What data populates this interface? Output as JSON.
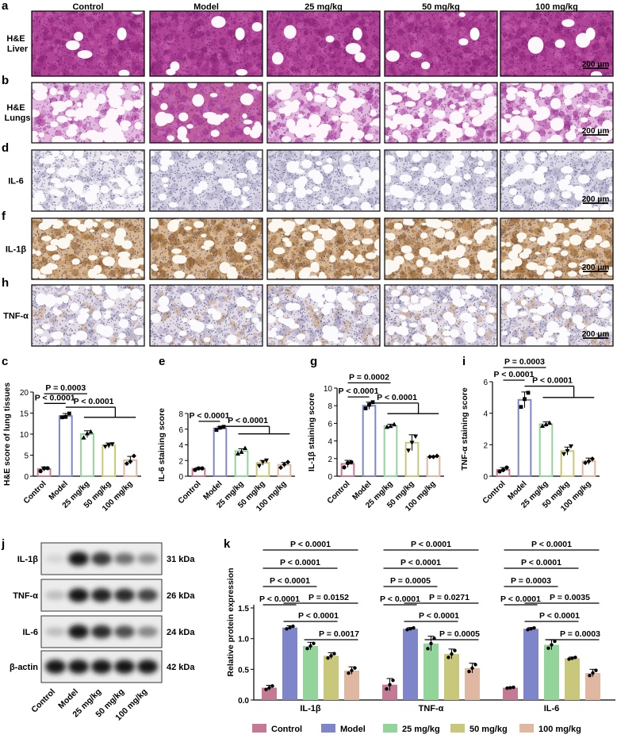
{
  "histology": {
    "columns": [
      "Control",
      "Model",
      "25 mg/kg",
      "50 mg/kg",
      "100 mg/kg"
    ],
    "rows": [
      {
        "letter": "a",
        "label": [
          "H&E",
          "Liver"
        ],
        "stain": "he-liver",
        "scale": "200 μm"
      },
      {
        "letter": "b",
        "label": [
          "H&E",
          "Lungs"
        ],
        "stain": "he-lung",
        "scale": "200 μm"
      },
      {
        "letter": "d",
        "label": [
          "IL-6"
        ],
        "stain": "ihc-light",
        "scale": "200 μm"
      },
      {
        "letter": "f",
        "label": [
          "IL-1β"
        ],
        "stain": "ihc-strong",
        "scale": "200 μm"
      },
      {
        "letter": "h",
        "label": [
          "TNF-α"
        ],
        "stain": "ihc-medium",
        "scale": "200 μm"
      }
    ]
  },
  "bar_colors": [
    "#c47a95",
    "#7e85c9",
    "#93d49b",
    "#c9c77a",
    "#e0b7a1"
  ],
  "groups": [
    "Control",
    "Model",
    "25 mg/kg",
    "50 mg/kg",
    "100 mg/kg"
  ],
  "blot": {
    "letter": "j",
    "rows": [
      {
        "label": "IL-1β",
        "kda": "31 kDa",
        "intensity": [
          0.1,
          0.95,
          0.8,
          0.55,
          0.4
        ]
      },
      {
        "label": "TNF-α",
        "kda": "26 kDa",
        "intensity": [
          0.2,
          0.95,
          0.9,
          0.85,
          0.75
        ]
      },
      {
        "label": "IL-6",
        "kda": "24 kDa",
        "intensity": [
          0.2,
          0.95,
          0.85,
          0.7,
          0.45
        ]
      },
      {
        "label": "β-actin",
        "kda": "42 kDa",
        "intensity": [
          0.95,
          0.95,
          0.95,
          0.95,
          0.95
        ]
      }
    ],
    "lanes": [
      "Control",
      "Model",
      "25 mg/kg",
      "50 mg/kg",
      "100 mg/kg"
    ]
  },
  "chart_data": [
    {
      "id": "c",
      "type": "bar",
      "categories": [
        "Control",
        "Model",
        "25 mg/kg",
        "50 mg/kg",
        "100 mg/kg"
      ],
      "values": [
        1.7,
        14.3,
        10.0,
        7.3,
        3.8
      ],
      "errors": [
        0.5,
        0.6,
        0.8,
        0.6,
        0.9
      ],
      "points": [
        [
          1.2,
          1.9,
          1.9
        ],
        [
          14.0,
          14.1,
          14.9
        ],
        [
          9.2,
          10.2,
          10.6
        ],
        [
          7.0,
          7.3,
          7.6
        ],
        [
          3.0,
          3.5,
          4.8
        ]
      ],
      "ylabel": "H&E score of lung tissues",
      "ylim": [
        0,
        20
      ],
      "yticks": [
        0,
        5,
        10,
        15,
        20
      ],
      "annotations": [
        {
          "text": "P = 0.0003",
          "level": 19.6
        },
        {
          "text": "P < 0.0001",
          "level": 17.3
        },
        {
          "text": "P < 0.0001",
          "level": 14.0
        }
      ]
    },
    {
      "id": "e",
      "type": "bar",
      "categories": [
        "Control",
        "Model",
        "25 mg/kg",
        "50 mg/kg",
        "100 mg/kg"
      ],
      "values": [
        0.95,
        6.1,
        3.2,
        1.7,
        1.45
      ],
      "errors": [
        0.15,
        0.2,
        0.3,
        0.3,
        0.3
      ],
      "points": [
        [
          0.8,
          1.0,
          1.0
        ],
        [
          5.9,
          6.2,
          6.3
        ],
        [
          2.9,
          3.1,
          3.6
        ],
        [
          1.3,
          1.8,
          2.0
        ],
        [
          1.1,
          1.5,
          1.8
        ]
      ],
      "ylabel": "IL-6 staining score",
      "ylim": [
        0,
        8
      ],
      "yticks": [
        0,
        2,
        4,
        6,
        8
      ],
      "annotations": [
        {
          "text": "P < 0.0001",
          "level": 7.0
        },
        {
          "text": "P < 0.0001",
          "level": 5.4
        }
      ]
    },
    {
      "id": "g",
      "type": "bar",
      "categories": [
        "Control",
        "Model",
        "25 mg/kg",
        "50 mg/kg",
        "100 mg/kg"
      ],
      "values": [
        1.4,
        8.0,
        5.7,
        3.8,
        2.2
      ],
      "errors": [
        0.4,
        0.4,
        0.2,
        0.9,
        0.1
      ],
      "points": [
        [
          1.0,
          1.5,
          1.6
        ],
        [
          7.7,
          8.1,
          8.4
        ],
        [
          5.6,
          5.7,
          5.9
        ],
        [
          2.9,
          3.8,
          4.5
        ],
        [
          2.2,
          2.2,
          2.3
        ]
      ],
      "ylabel": "IL-1β staining score",
      "ylim": [
        0,
        10
      ],
      "yticks": [
        0,
        2,
        4,
        6,
        8,
        10
      ],
      "annotations": [
        {
          "text": "P = 0.0002",
          "level": 10.6
        },
        {
          "text": "P < 0.0001",
          "level": 9.0
        },
        {
          "text": "P < 0.0001",
          "level": 7.1
        }
      ]
    },
    {
      "id": "i",
      "type": "bar",
      "categories": [
        "Control",
        "Model",
        "25 mg/kg",
        "50 mg/kg",
        "100 mg/kg"
      ],
      "values": [
        0.4,
        4.85,
        3.3,
        1.6,
        0.95
      ],
      "errors": [
        0.15,
        0.5,
        0.15,
        0.25,
        0.2
      ],
      "points": [
        [
          0.3,
          0.4,
          0.55
        ],
        [
          4.4,
          4.9,
          5.3
        ],
        [
          3.2,
          3.3,
          3.4
        ],
        [
          1.4,
          1.6,
          1.9
        ],
        [
          0.85,
          0.95,
          1.1
        ]
      ],
      "ylabel": "TNF-α staining score",
      "ylim": [
        0,
        6
      ],
      "yticks": [
        0,
        2,
        4,
        6
      ],
      "annotations": [
        {
          "text": "P = 0.0003",
          "level": 6.9
        },
        {
          "text": "P < 0.0001",
          "level": 6.1
        },
        {
          "text": "P < 0.0001",
          "level": 5.0
        }
      ]
    },
    {
      "id": "k",
      "type": "bar",
      "categories": [
        "IL-1β",
        "TNF-α",
        "IL-6"
      ],
      "series": [
        {
          "name": "Control",
          "values": [
            0.2,
            0.25,
            0.2
          ],
          "errors": [
            0.04,
            0.1,
            0.01
          ]
        },
        {
          "name": "Model",
          "values": [
            1.18,
            1.16,
            1.16
          ],
          "errors": [
            0.03,
            0.02,
            0.02
          ]
        },
        {
          "name": "25 mg/kg",
          "values": [
            0.88,
            0.92,
            0.9
          ],
          "errors": [
            0.06,
            0.12,
            0.08
          ]
        },
        {
          "name": "50 mg/kg",
          "values": [
            0.72,
            0.75,
            0.68
          ],
          "errors": [
            0.05,
            0.08,
            0.02
          ]
        },
        {
          "name": "100 mg/kg",
          "values": [
            0.48,
            0.52,
            0.44
          ],
          "errors": [
            0.06,
            0.08,
            0.06
          ]
        }
      ],
      "ylabel": "Relative protein expression",
      "ylim": [
        0,
        1.5
      ],
      "yticks": [
        0,
        0.5,
        1.0,
        1.5
      ],
      "annotations": [
        {
          "group": 0,
          "items": [
            "P < 0.0001",
            "P < 0.0001",
            "P < 0.0001",
            "P < 0.0001",
            "P = 0.0152",
            "P < 0.0001",
            "P = 0.0017"
          ]
        },
        {
          "group": 1,
          "items": [
            "P < 0.0001",
            "P < 0.0001",
            "P = 0.0005",
            "P < 0.0001",
            "P = 0.0271",
            "P < 0.0001",
            "P = 0.0005"
          ]
        },
        {
          "group": 2,
          "items": [
            "P < 0.0001",
            "P < 0.0001",
            "P = 0.0003",
            "P < 0.0001",
            "P = 0.0035",
            "P < 0.0001",
            "P = 0.0003"
          ]
        }
      ]
    }
  ]
}
